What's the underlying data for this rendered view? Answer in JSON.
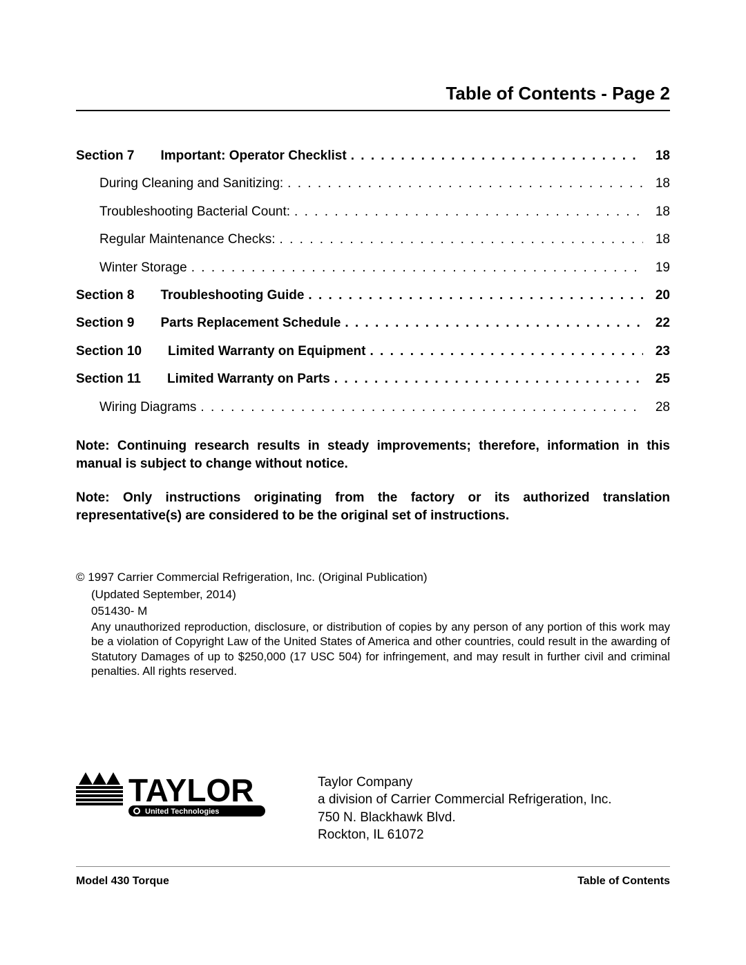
{
  "title": "Table of Contents - Page 2",
  "toc": [
    {
      "type": "section",
      "section": "Section 7",
      "heading": "Important: Operator Checklist",
      "page": "18"
    },
    {
      "type": "sub",
      "heading": "During Cleaning and Sanitizing:",
      "page": "18"
    },
    {
      "type": "sub",
      "heading": "Troubleshooting Bacterial Count:",
      "page": "18"
    },
    {
      "type": "sub",
      "heading": "Regular Maintenance Checks:",
      "page": "18"
    },
    {
      "type": "sub",
      "heading": "Winter Storage",
      "page": "19"
    },
    {
      "type": "section",
      "section": "Section 8",
      "heading": "Troubleshooting Guide",
      "page": "20"
    },
    {
      "type": "section",
      "section": "Section 9",
      "heading": "Parts Replacement Schedule",
      "page": "22"
    },
    {
      "type": "section",
      "section": "Section 10",
      "heading": "Limited Warranty on Equipment",
      "page": "23"
    },
    {
      "type": "section",
      "section": "Section 11",
      "heading": "Limited Warranty on Parts",
      "page": "25"
    },
    {
      "type": "sub",
      "heading": "Wiring Diagrams",
      "page": "28"
    }
  ],
  "notes": [
    "Note: Continuing research results in steady improvements; therefore, information in this manual is subject to change without notice.",
    "Note: Only instructions originating from the factory or its authorized translation representative(s) are considered to be the original set of instructions."
  ],
  "copyright": {
    "line1": "© 1997 Carrier Commercial Refrigeration, Inc. (Original Publication)",
    "line2": "(Updated September, 2014)",
    "line3": "051430- M",
    "body": "Any unauthorized reproduction, disclosure, or distribution of copies by any person of any portion of this work may be a violation of Copyright Law of the United States of America and other countries, could result in the awarding of Statutory Damages of up to $250,000 (17 USC 504) for infringement, and may result in further civil and criminal penalties. All rights reserved."
  },
  "company": {
    "name": "Taylor Company",
    "division": "a division of Carrier Commercial Refrigeration, Inc.",
    "address1": "750 N. Blackhawk Blvd.",
    "address2": "Rockton, IL   61072"
  },
  "footer": {
    "left": "Model 430 Torque",
    "right": "Table of Contents"
  },
  "logo": {
    "brand": "TAYLOR",
    "sub": "United Technologies"
  }
}
